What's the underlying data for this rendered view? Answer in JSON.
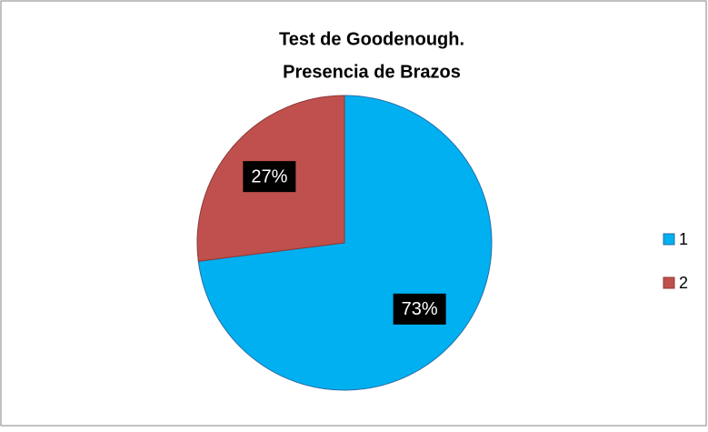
{
  "chart_data": {
    "type": "pie",
    "title": [
      "Test de Goodenough.",
      "Presencia de Brazos"
    ],
    "categories": [
      "1",
      "2"
    ],
    "values": [
      73,
      27
    ],
    "value_labels": [
      "73%",
      "27%"
    ],
    "colors": [
      "#00b0f0",
      "#c0504d"
    ],
    "legend": "right"
  }
}
